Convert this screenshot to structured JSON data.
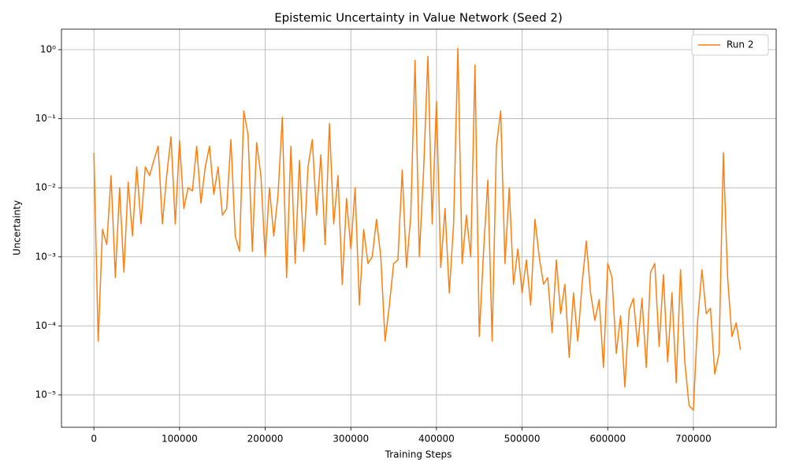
{
  "chart_data": {
    "type": "line",
    "title": "Epistemic Uncertainty in Value Network (Seed 2)",
    "x_label": "Training Steps",
    "y_label": "Uncertainty",
    "x": [
      0,
      5000,
      10000,
      15000,
      20000,
      25000,
      30000,
      35000,
      40000,
      45000,
      50000,
      55000,
      60000,
      65000,
      70000,
      75000,
      80000,
      85000,
      90000,
      95000,
      100000,
      105000,
      110000,
      115000,
      120000,
      125000,
      130000,
      135000,
      140000,
      145000,
      150000,
      155000,
      160000,
      165000,
      170000,
      175000,
      180000,
      185000,
      190000,
      195000,
      200000,
      205000,
      210000,
      215000,
      220000,
      225000,
      230000,
      235000,
      240000,
      245000,
      250000,
      255000,
      260000,
      265000,
      270000,
      275000,
      280000,
      285000,
      290000,
      295000,
      300000,
      305000,
      310000,
      315000,
      320000,
      325000,
      330000,
      335000,
      340000,
      345000,
      350000,
      355000,
      360000,
      365000,
      370000,
      375000,
      380000,
      385000,
      390000,
      395000,
      400000,
      405000,
      410000,
      415000,
      420000,
      425000,
      430000,
      435000,
      440000,
      445000,
      450000,
      455000,
      460000,
      465000,
      470000,
      475000,
      480000,
      485000,
      490000,
      495000,
      500000,
      505000,
      510000,
      515000,
      520000,
      525000,
      530000,
      535000,
      540000,
      545000,
      550000,
      555000,
      560000,
      565000,
      570000,
      575000,
      580000,
      585000,
      590000,
      595000,
      600000,
      605000,
      610000,
      615000,
      620000,
      625000,
      630000,
      635000,
      640000,
      645000,
      650000,
      655000,
      660000,
      665000,
      670000,
      675000,
      680000,
      685000,
      690000,
      695000,
      700000,
      705000,
      710000,
      715000,
      720000,
      725000,
      730000,
      735000,
      740000,
      745000,
      750000,
      755000
    ],
    "series": [
      {
        "name": "Run 2",
        "color": "#ff7f0e",
        "values": [
          0.032,
          6e-05,
          0.0025,
          0.0015,
          0.015,
          0.0005,
          0.01,
          0.0006,
          0.012,
          0.002,
          0.02,
          0.003,
          0.02,
          0.015,
          0.025,
          0.04,
          0.003,
          0.015,
          0.055,
          0.003,
          0.048,
          0.005,
          0.01,
          0.009,
          0.04,
          0.006,
          0.02,
          0.04,
          0.008,
          0.02,
          0.004,
          0.005,
          0.05,
          0.002,
          0.0012,
          0.13,
          0.058,
          0.0012,
          0.045,
          0.015,
          0.001,
          0.01,
          0.002,
          0.008,
          0.105,
          0.0005,
          0.04,
          0.0008,
          0.025,
          0.0012,
          0.02,
          0.05,
          0.004,
          0.03,
          0.0015,
          0.085,
          0.003,
          0.015,
          0.0004,
          0.007,
          0.0013,
          0.01,
          0.0002,
          0.0025,
          0.0008,
          0.001,
          0.0035,
          0.001,
          6e-05,
          0.0002,
          0.0008,
          0.0009,
          0.018,
          0.0007,
          0.004,
          0.7,
          0.001,
          0.018,
          0.8,
          0.003,
          0.18,
          0.0007,
          0.005,
          0.0003,
          0.003,
          1.05,
          0.0008,
          0.004,
          0.001,
          0.6,
          7e-05,
          0.0012,
          0.013,
          6e-05,
          0.04,
          0.13,
          0.0008,
          0.01,
          0.0004,
          0.0013,
          0.0003,
          0.0009,
          0.0002,
          0.0035,
          0.001,
          0.0004,
          0.0005,
          8e-05,
          0.0009,
          0.00015,
          0.0004,
          3.5e-05,
          0.0003,
          6e-05,
          0.0004,
          0.0017,
          0.0003,
          0.00012,
          0.00024,
          2.5e-05,
          0.0008,
          0.0005,
          4e-05,
          0.00014,
          1.3e-05,
          0.00017,
          0.00025,
          5e-05,
          0.00025,
          2.5e-05,
          0.0006,
          0.0008,
          5e-05,
          0.00055,
          3e-05,
          0.0003,
          1.5e-05,
          0.00065,
          3e-05,
          7e-06,
          6e-06,
          0.00012,
          0.00065,
          0.00015,
          0.00018,
          2e-05,
          4e-05,
          0.032,
          0.0005,
          7e-05,
          0.00011,
          4.5e-05
        ]
      }
    ],
    "xlim": [
      -37900,
      796700
    ],
    "xticks": [
      0,
      100000,
      200000,
      300000,
      400000,
      500000,
      600000,
      700000
    ],
    "ylim": [
      3.4e-06,
      1.98
    ],
    "log_y": true,
    "yticks": [
      {
        "value": 1e-05,
        "label": "10⁻⁵"
      },
      {
        "value": 0.0001,
        "label": "10⁻⁴"
      },
      {
        "value": 0.001,
        "label": "10⁻³"
      },
      {
        "value": 0.01,
        "label": "10⁻²"
      },
      {
        "value": 0.1,
        "label": "10⁻¹"
      },
      {
        "value": 1,
        "label": "10⁰"
      }
    ],
    "grid": true,
    "legend": "upper-right"
  }
}
